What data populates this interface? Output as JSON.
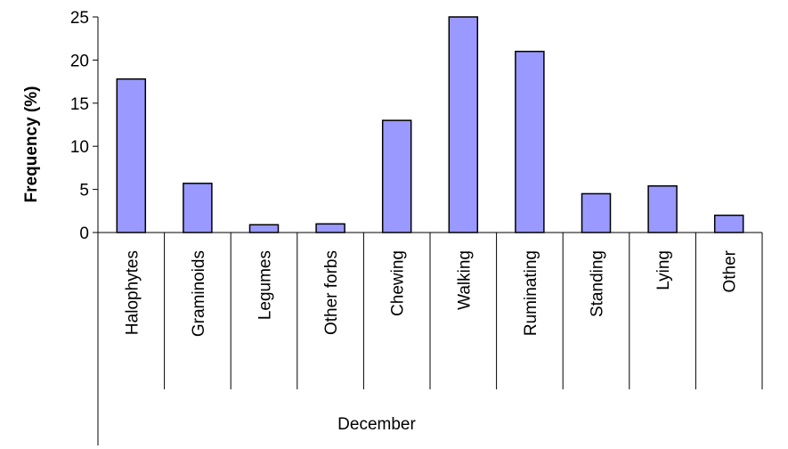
{
  "chart_data": {
    "type": "bar",
    "categories": [
      "Halophytes",
      "Graminoids",
      "Legumes",
      "Other forbs",
      "Chewing",
      "Walking",
      "Ruminating",
      "Standing",
      "Lying",
      "Other"
    ],
    "values": [
      17.8,
      5.7,
      0.9,
      1.0,
      13.0,
      25.0,
      21.0,
      4.5,
      5.4,
      2.0
    ],
    "group_label": "December",
    "ylabel": "Frequency (%)",
    "ylim": [
      0,
      25
    ],
    "yticks": [
      "0",
      "5",
      "10",
      "15",
      "20",
      "25"
    ],
    "bar_color": "#9999ff",
    "legend": "none",
    "grid": false
  }
}
